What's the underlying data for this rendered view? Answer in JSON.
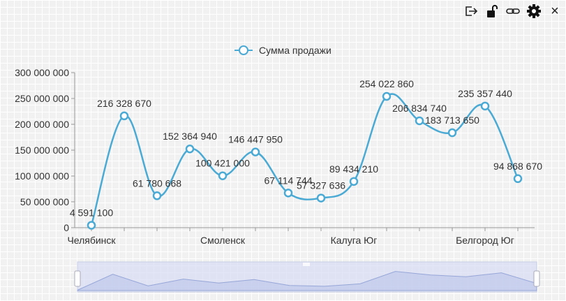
{
  "toolbar": {
    "icons": [
      "export-icon",
      "unlock-icon",
      "link-icon",
      "gear-icon",
      "close-icon"
    ],
    "close_label": "×"
  },
  "chart_data": {
    "type": "line",
    "smooth": true,
    "title": "",
    "legend": [
      "Сумма продажи"
    ],
    "legend_position": "top-center",
    "xlabel": "",
    "ylabel": "",
    "categories": [
      "Челябинск",
      "",
      "",
      "",
      "Смоленск",
      "",
      "",
      "",
      "Калуга Юг",
      "",
      "",
      "",
      "Белгород Юг",
      ""
    ],
    "series": [
      {
        "name": "Сумма продажи",
        "color": "#4aaad4",
        "values": [
          4591100,
          216328670,
          61780668,
          152364940,
          100421000,
          146447950,
          67114744,
          57327636,
          89434210,
          254022860,
          206834740,
          183713650,
          235357440,
          94868670
        ],
        "labels": [
          "4 591 100",
          "216 328 670",
          "61 780 668",
          "152 364 940",
          "100 421 000",
          "146 447 950",
          "67 114 744",
          "57 327 636",
          "89 434 210",
          "254 022 860",
          "206 834 740",
          "183 713 650",
          "235 357 440",
          "94 868 670"
        ]
      }
    ],
    "ylim": [
      0,
      300000000
    ],
    "yticks": [
      0,
      50000000,
      100000000,
      150000000,
      200000000,
      250000000,
      300000000
    ],
    "ytick_labels": [
      "0",
      "50 000 000",
      "100 000 000",
      "150 000 000",
      "200 000 000",
      "250 000 000",
      "300 000 000"
    ],
    "grid": false,
    "datazoom": {
      "start": 0,
      "end": 100
    }
  }
}
